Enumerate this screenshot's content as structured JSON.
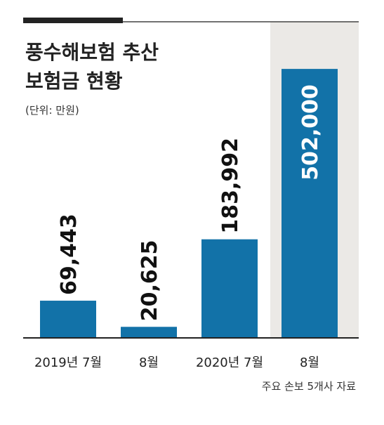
{
  "chart_data": {
    "type": "bar",
    "title_lines": [
      "풍수해보험 추산",
      "보험금 현황"
    ],
    "unit_note": "(단위: 만원)",
    "categories": [
      "2019년 7월",
      "8월",
      "2020년 7월",
      "8월"
    ],
    "values": [
      69443,
      20625,
      183992,
      502000
    ],
    "value_labels": [
      "69,443",
      "20,625",
      "183,992",
      "502,000"
    ],
    "highlight_index": 3,
    "ylim": [
      0,
      510000
    ],
    "source": "주요 손보 5개사 자료"
  },
  "colors": {
    "bar": "#1272a8",
    "highlight_band": "#ebe9e6",
    "text": "#222222",
    "value_text_dark": "#111111",
    "value_text_light": "#ffffff",
    "rule": "#222222"
  }
}
